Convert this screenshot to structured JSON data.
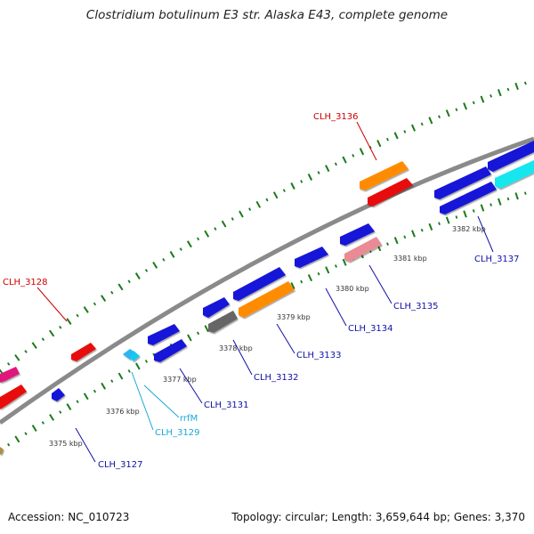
{
  "title": "Clostridium botulinum E3 str. Alaska E43, complete genome",
  "footer": {
    "accession": "Accession: NC_010723",
    "stats": "Topology: circular; Length: 3,659,644 bp; Genes: 3,370"
  },
  "colors": {
    "backbone": "#8a8a8a",
    "tick": "#1a7a1a",
    "blue": "#1515d8",
    "cyan": "#19e6ee",
    "orange": "#ff8c00",
    "red": "#e81010",
    "pink": "#ea8a94",
    "gray": "#666666",
    "magenta": "#e0187c",
    "label_blue": "#1010a8",
    "label_red": "#cc0000",
    "label_cyan": "#1aa8d8"
  },
  "scale_ticks": [
    "3375 kbp",
    "3376 kbp",
    "3377 kbp",
    "3378 kbp",
    "3379 kbp",
    "3380 kbp",
    "3381 kbp",
    "3382 kbp"
  ],
  "gene_labels": {
    "clh3127": "CLH_3127",
    "clh3128": "CLH_3128",
    "rrfm": "rrfM",
    "clh3129": "CLH_3129",
    "clh3131": "CLH_3131",
    "clh3132": "CLH_3132",
    "clh3133": "CLH_3133",
    "clh3134": "CLH_3134",
    "clh3135": "CLH_3135",
    "clh3136": "CLH_3136",
    "clh3137": "CLH_3137"
  }
}
